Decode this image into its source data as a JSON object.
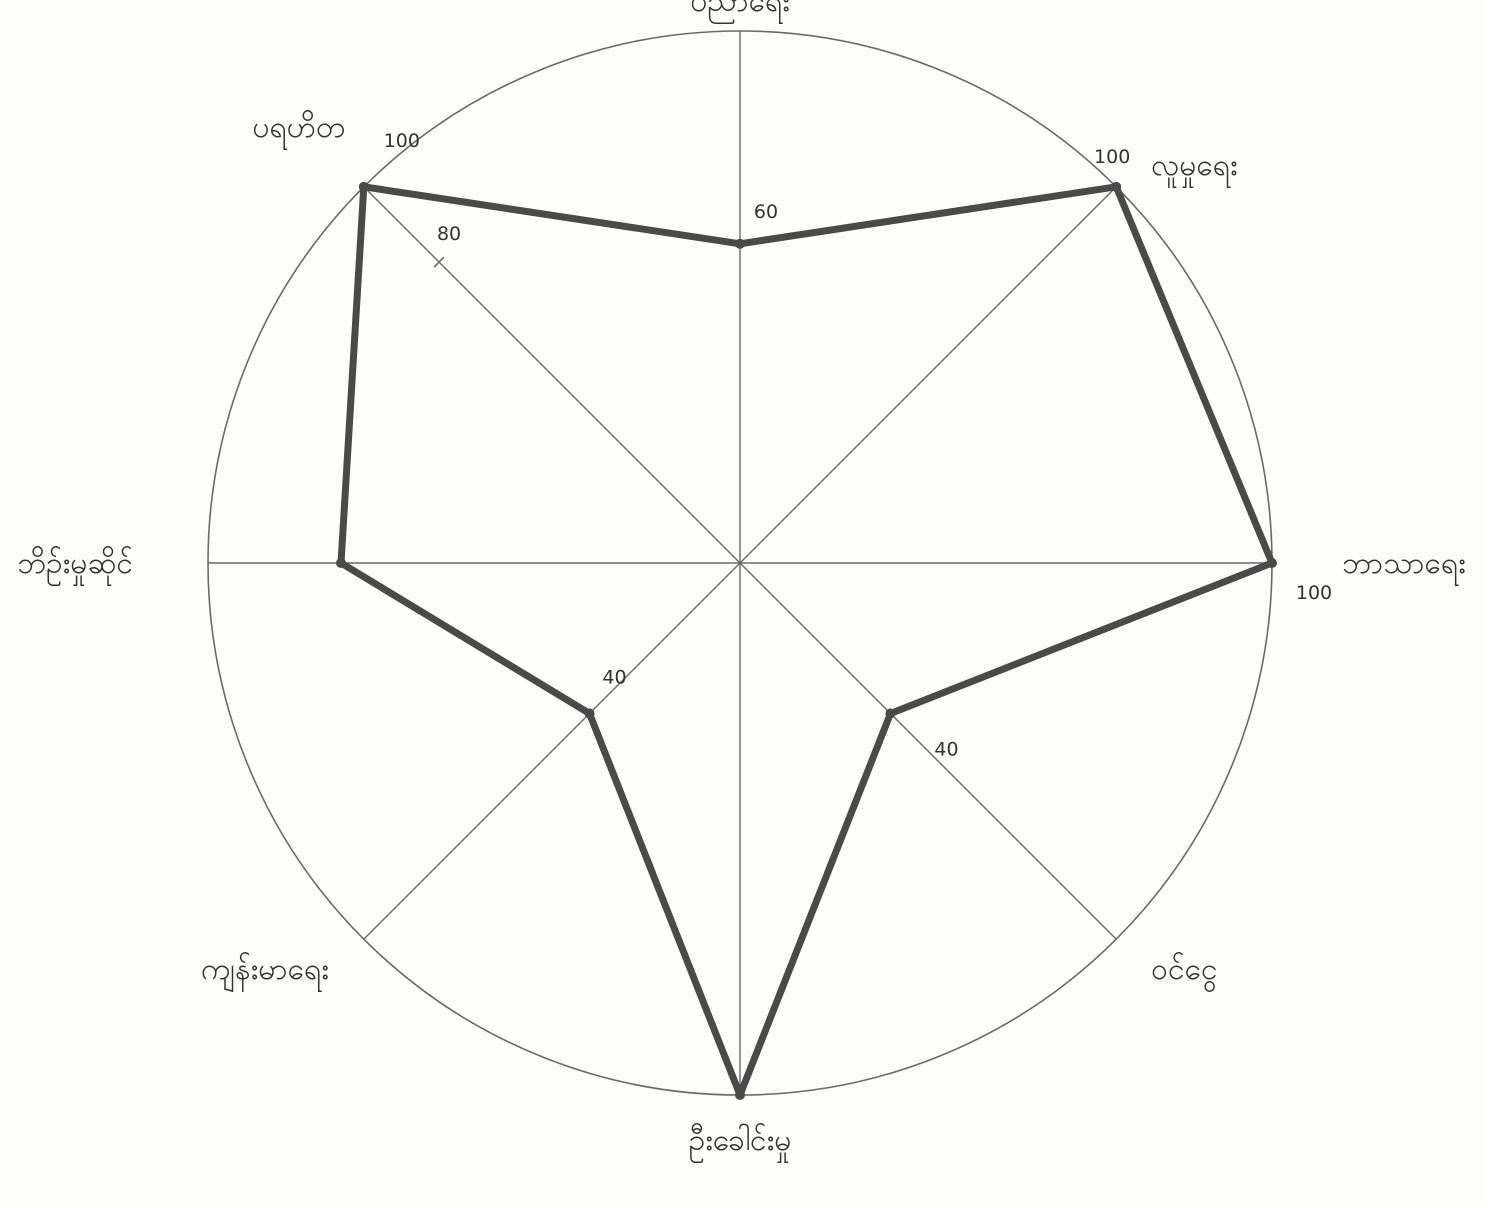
{
  "chart_data": {
    "type": "radar",
    "title": "",
    "max_value": 100,
    "categories": [
      "ပညာရေး",
      "လူမှုရေး",
      "ဘာသာရေး",
      "ဝင်ငွေ",
      "ဦးခေါင်းမှု",
      "ကျန်းမာရေး",
      "ဘိဉ်းမှုဆိုင်",
      "ပရဟိတ"
    ],
    "values": [
      60,
      100,
      100,
      40,
      100,
      40,
      75,
      100
    ],
    "point_labels": [
      "60",
      "100",
      "100",
      "40",
      "",
      "40",
      "",
      "100"
    ],
    "tick_mark": {
      "category_index": 7,
      "value": 80,
      "label": "80"
    },
    "colors": {
      "polygon": "#4a4a4a",
      "axis": "#6a6a6a",
      "circle": "#6a6a6a"
    },
    "grid": "single outer circle with 8 radial axes",
    "legend": "none"
  }
}
